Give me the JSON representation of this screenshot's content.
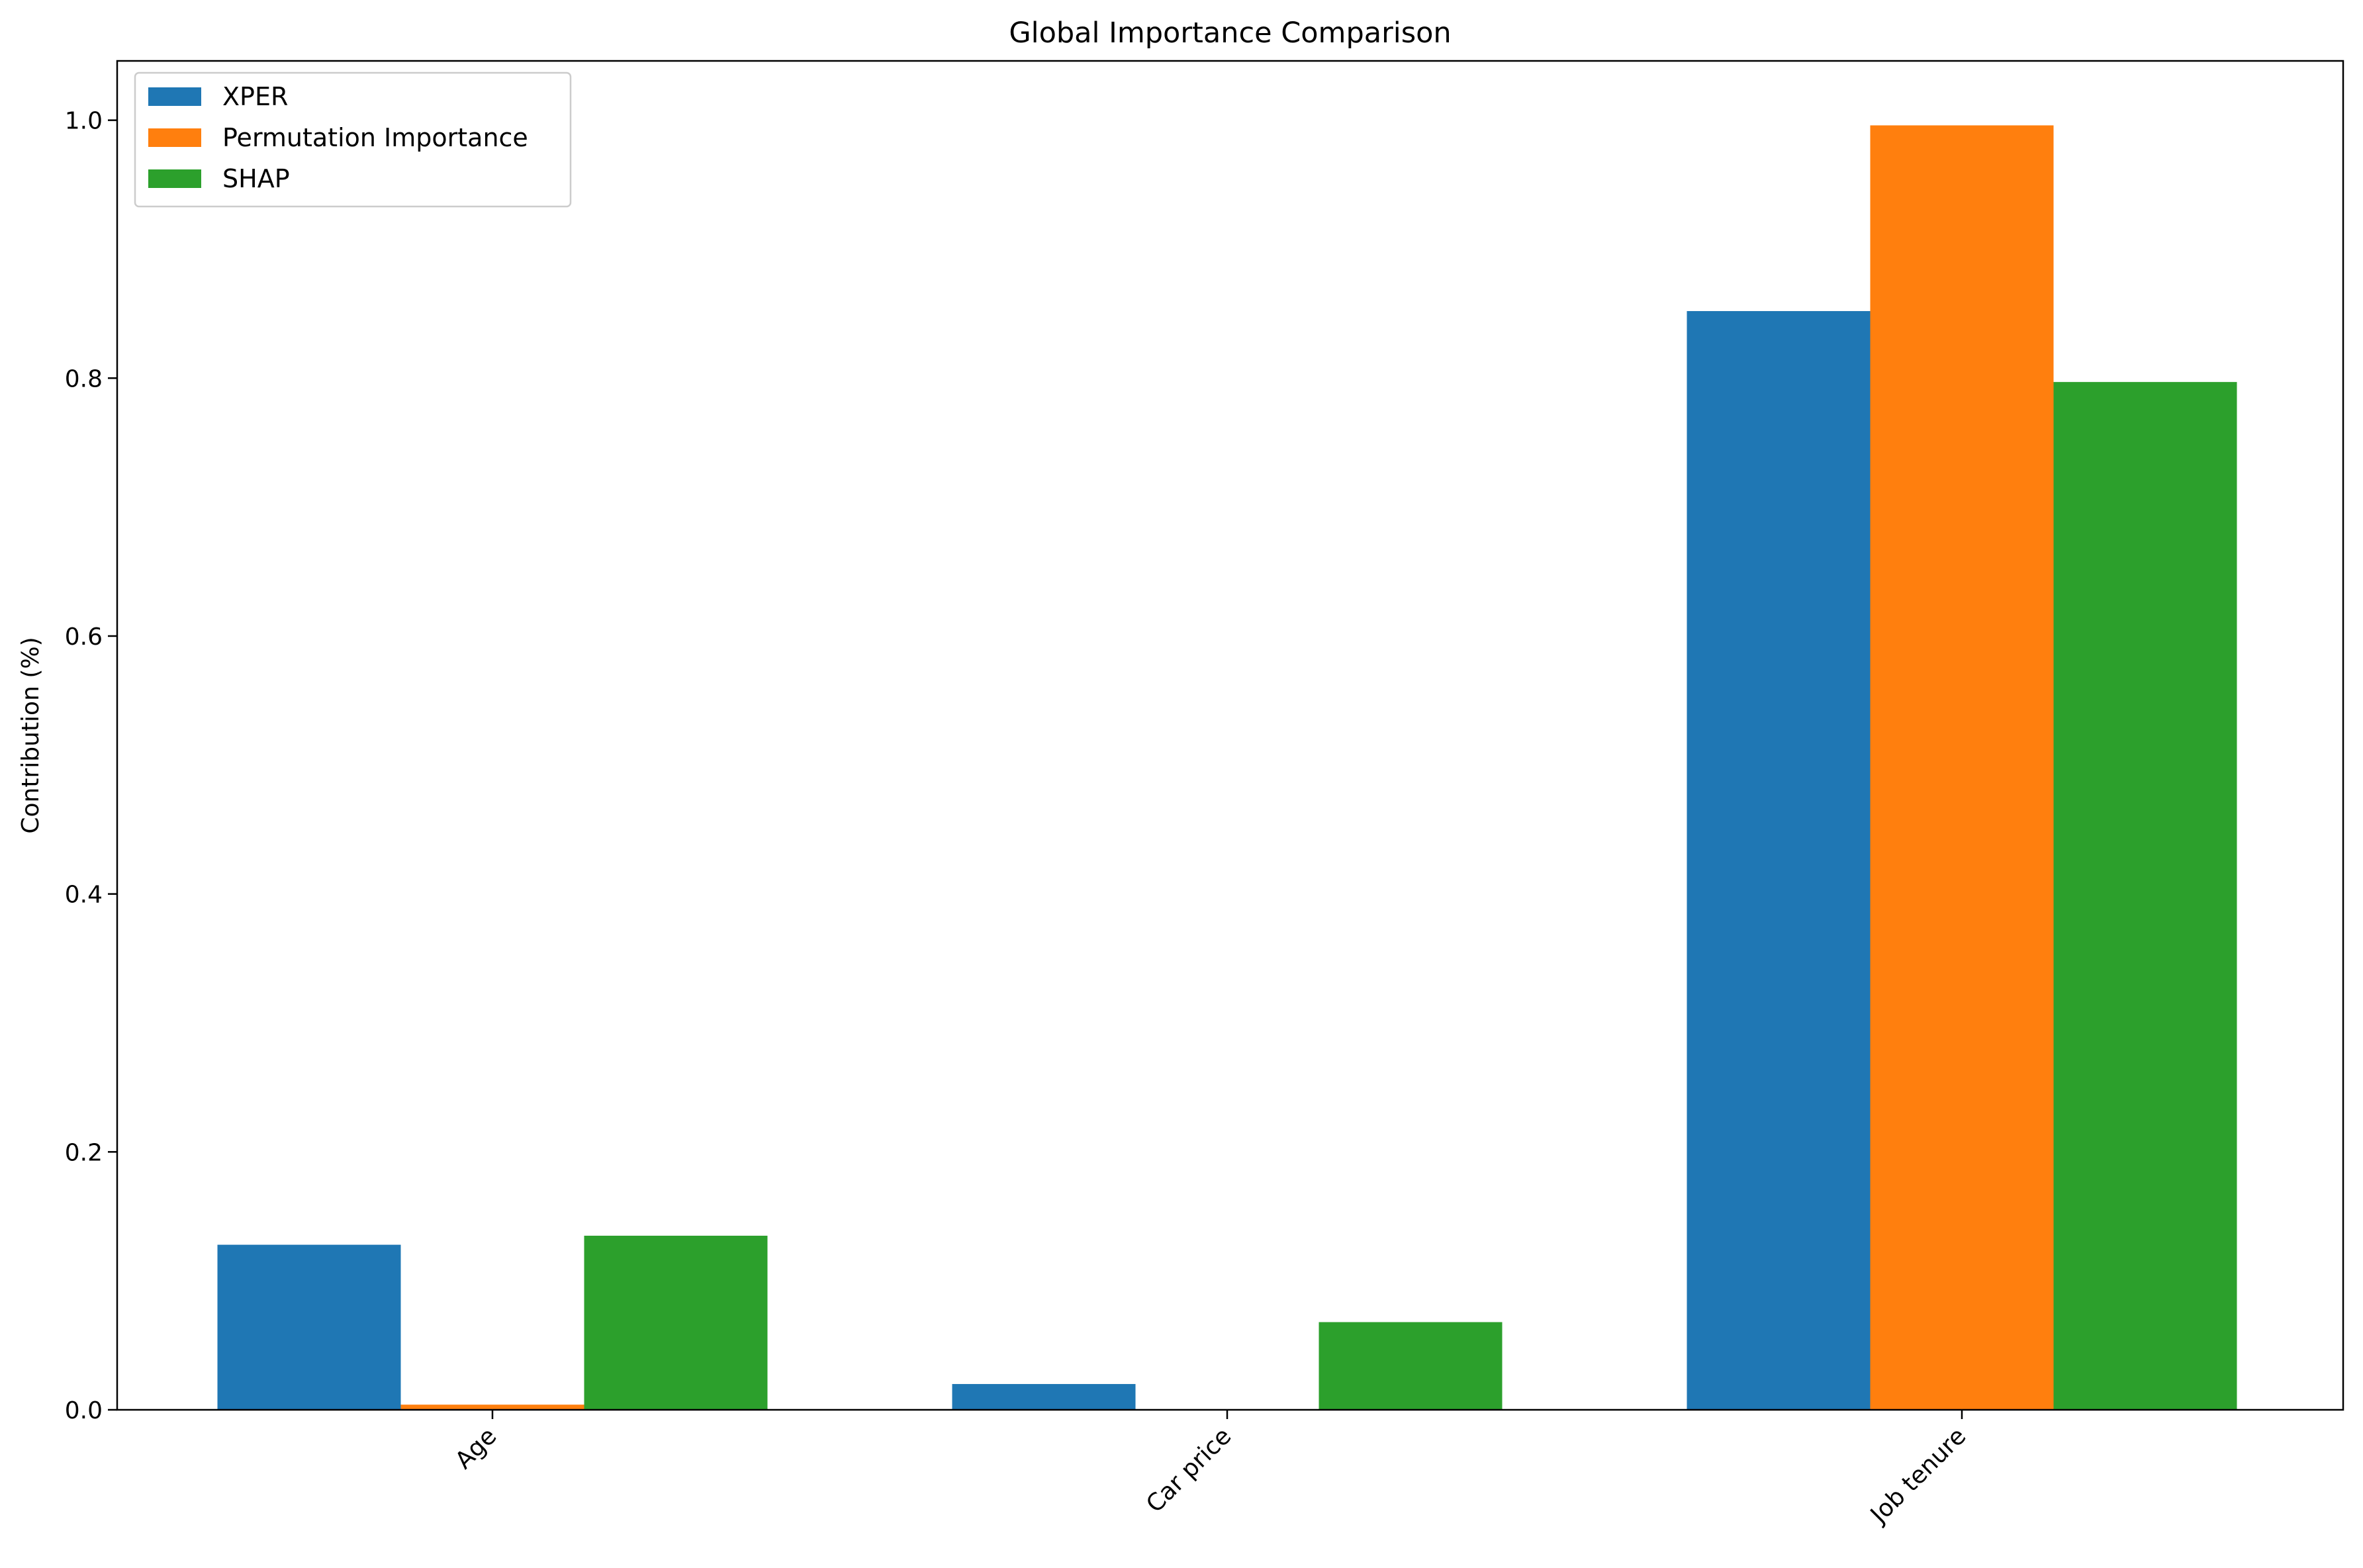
{
  "chart_data": {
    "type": "bar",
    "title": "Global Importance Comparison",
    "xlabel": "",
    "ylabel": "Contribution (%)",
    "categories": [
      "Age",
      "Car price",
      "Job tenure"
    ],
    "series": [
      {
        "name": "XPER",
        "color": "#1f77b4",
        "values": [
          0.128,
          0.02,
          0.852
        ]
      },
      {
        "name": "Permutation Importance",
        "color": "#ff7f0e",
        "values": [
          0.004,
          0.0,
          0.996
        ]
      },
      {
        "name": "SHAP",
        "color": "#2ca02c",
        "values": [
          0.135,
          0.068,
          0.797
        ]
      }
    ],
    "ylim": [
      0,
      1.046
    ],
    "yticks": [
      "0.0",
      "0.2",
      "0.4",
      "0.6",
      "0.8",
      "1.0"
    ],
    "grid": false,
    "legend_position": "top-left",
    "x_tick_rotation": "45"
  }
}
